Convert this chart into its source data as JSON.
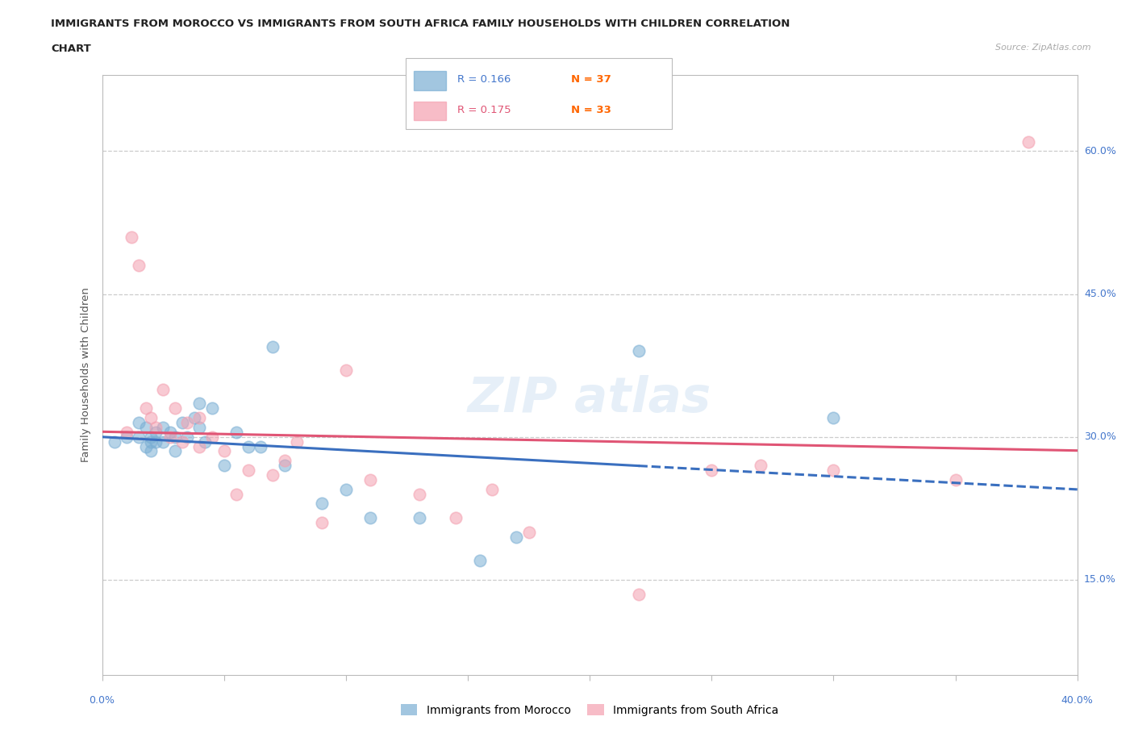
{
  "title_line1": "IMMIGRANTS FROM MOROCCO VS IMMIGRANTS FROM SOUTH AFRICA FAMILY HOUSEHOLDS WITH CHILDREN CORRELATION",
  "title_line2": "CHART",
  "source": "Source: ZipAtlas.com",
  "ylabel": "Family Households with Children",
  "xlim": [
    0.0,
    0.4
  ],
  "ylim": [
    0.05,
    0.68
  ],
  "ytick_vals": [
    0.15,
    0.3,
    0.45,
    0.6
  ],
  "ytick_labels": [
    "15.0%",
    "30.0%",
    "45.0%",
    "60.0%"
  ],
  "r_morocco": 0.166,
  "n_morocco": 37,
  "r_south_africa": 0.175,
  "n_south_africa": 33,
  "color_morocco": "#7bafd4",
  "color_south_africa": "#f4a0b0",
  "trendline_morocco_color": "#3a6fbf",
  "trendline_sa_color": "#e05575",
  "morocco_x": [
    0.005,
    0.01,
    0.015,
    0.015,
    0.018,
    0.018,
    0.02,
    0.02,
    0.02,
    0.022,
    0.022,
    0.025,
    0.025,
    0.028,
    0.03,
    0.03,
    0.033,
    0.035,
    0.038,
    0.04,
    0.04,
    0.042,
    0.045,
    0.05,
    0.055,
    0.06,
    0.065,
    0.07,
    0.075,
    0.09,
    0.1,
    0.11,
    0.13,
    0.155,
    0.17,
    0.22,
    0.3
  ],
  "morocco_y": [
    0.295,
    0.3,
    0.315,
    0.3,
    0.31,
    0.29,
    0.285,
    0.295,
    0.3,
    0.295,
    0.305,
    0.31,
    0.295,
    0.305,
    0.285,
    0.3,
    0.315,
    0.3,
    0.32,
    0.335,
    0.31,
    0.295,
    0.33,
    0.27,
    0.305,
    0.29,
    0.29,
    0.395,
    0.27,
    0.23,
    0.245,
    0.215,
    0.215,
    0.17,
    0.195,
    0.39,
    0.32
  ],
  "south_africa_x": [
    0.01,
    0.012,
    0.015,
    0.018,
    0.02,
    0.022,
    0.025,
    0.028,
    0.03,
    0.033,
    0.035,
    0.04,
    0.04,
    0.045,
    0.05,
    0.055,
    0.06,
    0.07,
    0.075,
    0.08,
    0.09,
    0.1,
    0.11,
    0.13,
    0.145,
    0.16,
    0.175,
    0.22,
    0.25,
    0.27,
    0.3,
    0.35,
    0.38
  ],
  "south_africa_y": [
    0.305,
    0.51,
    0.48,
    0.33,
    0.32,
    0.31,
    0.35,
    0.3,
    0.33,
    0.295,
    0.315,
    0.29,
    0.32,
    0.3,
    0.285,
    0.24,
    0.265,
    0.26,
    0.275,
    0.295,
    0.21,
    0.37,
    0.255,
    0.24,
    0.215,
    0.245,
    0.2,
    0.135,
    0.265,
    0.27,
    0.265,
    0.255,
    0.61
  ]
}
